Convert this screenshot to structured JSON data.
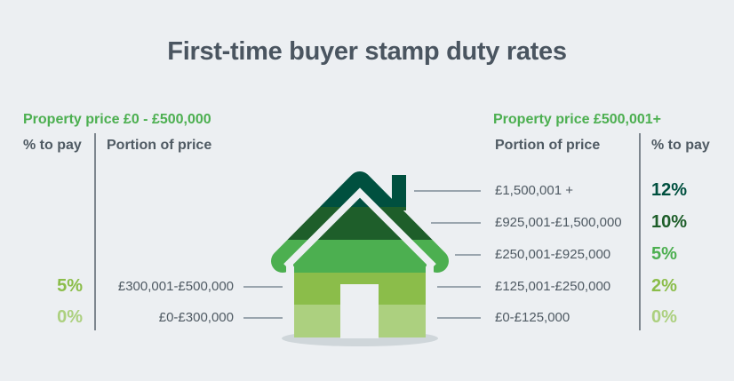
{
  "title": "First-time buyer stamp duty rates",
  "colors": {
    "band_12": "#00503f",
    "band_10": "#1e5e2a",
    "band_5": "#4caf50",
    "band_2": "#8bbd4a",
    "band_0": "#acd07f",
    "heading_green": "#4caf50"
  },
  "left": {
    "heading": "Property price £0 - £500,000",
    "col_pct": "% to pay",
    "col_portion": "Portion of price",
    "rows": [
      {
        "pct": "5%",
        "portion": "£300,001-£500,000"
      },
      {
        "pct": "0%",
        "portion": "£0-£300,000"
      }
    ]
  },
  "right": {
    "heading": "Property price £500,001+",
    "col_portion": "Portion of price",
    "col_pct": "% to pay",
    "rows": [
      {
        "portion": "£1,500,001 +",
        "pct": "12%"
      },
      {
        "portion": "£925,001-£1,500,000",
        "pct": "10%"
      },
      {
        "portion": "£250,001-£925,000",
        "pct": "5%"
      },
      {
        "portion": "£125,001-£250,000",
        "pct": "2%"
      },
      {
        "portion": "£0-£125,000",
        "pct": "0%"
      }
    ]
  }
}
